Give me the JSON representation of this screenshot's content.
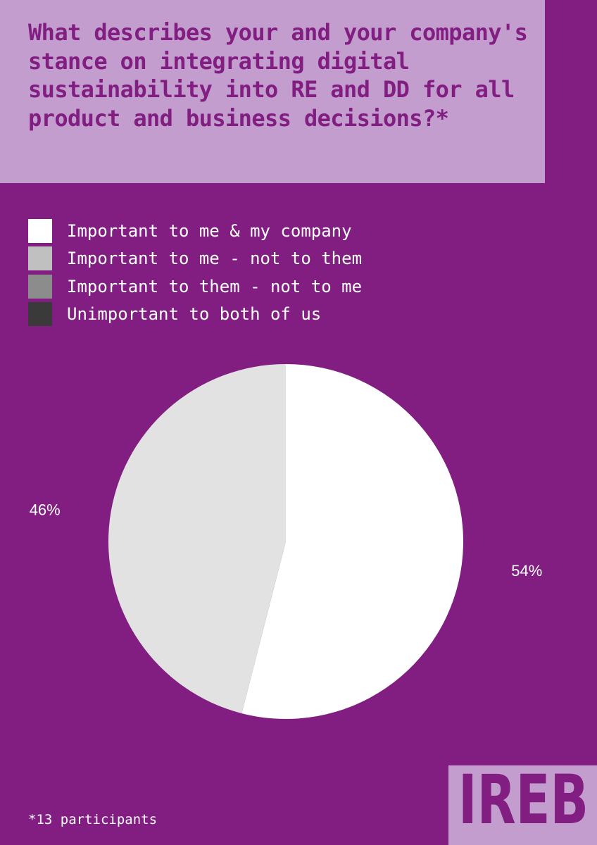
{
  "title": "What describes your and your company's stance on integrating digital sustainability into RE and DD for all product and business decisions?*",
  "legend": [
    {
      "label": "Important to me & my company",
      "color": "#ffffff"
    },
    {
      "label": "Important to me - not to them",
      "color": "#c0c0c0"
    },
    {
      "label": "Important to them - not to me",
      "color": "#8c8c8c"
    },
    {
      "label": "Unimportant to both of us",
      "color": "#3a3a3a"
    }
  ],
  "chart_data": {
    "type": "pie",
    "title": "What describes your and your company's stance on integrating digital sustainability into RE and DD for all product and business decisions?*",
    "categories": [
      "Important to me & my company",
      "Important to me - not to them",
      "Important to them - not to me",
      "Unimportant to both of us"
    ],
    "values": [
      54,
      46,
      0,
      0
    ],
    "labels": [
      "54%",
      "46%",
      "",
      ""
    ],
    "colors": [
      "#ffffff",
      "#e2e2e2",
      "#8c8c8c",
      "#3a3a3a"
    ]
  },
  "footnote": "*13 participants",
  "logo": "IREB",
  "colors": {
    "background": "#821e82",
    "title_box": "#c39dcd",
    "title_text": "#821e82",
    "label_text": "#ffffff"
  }
}
